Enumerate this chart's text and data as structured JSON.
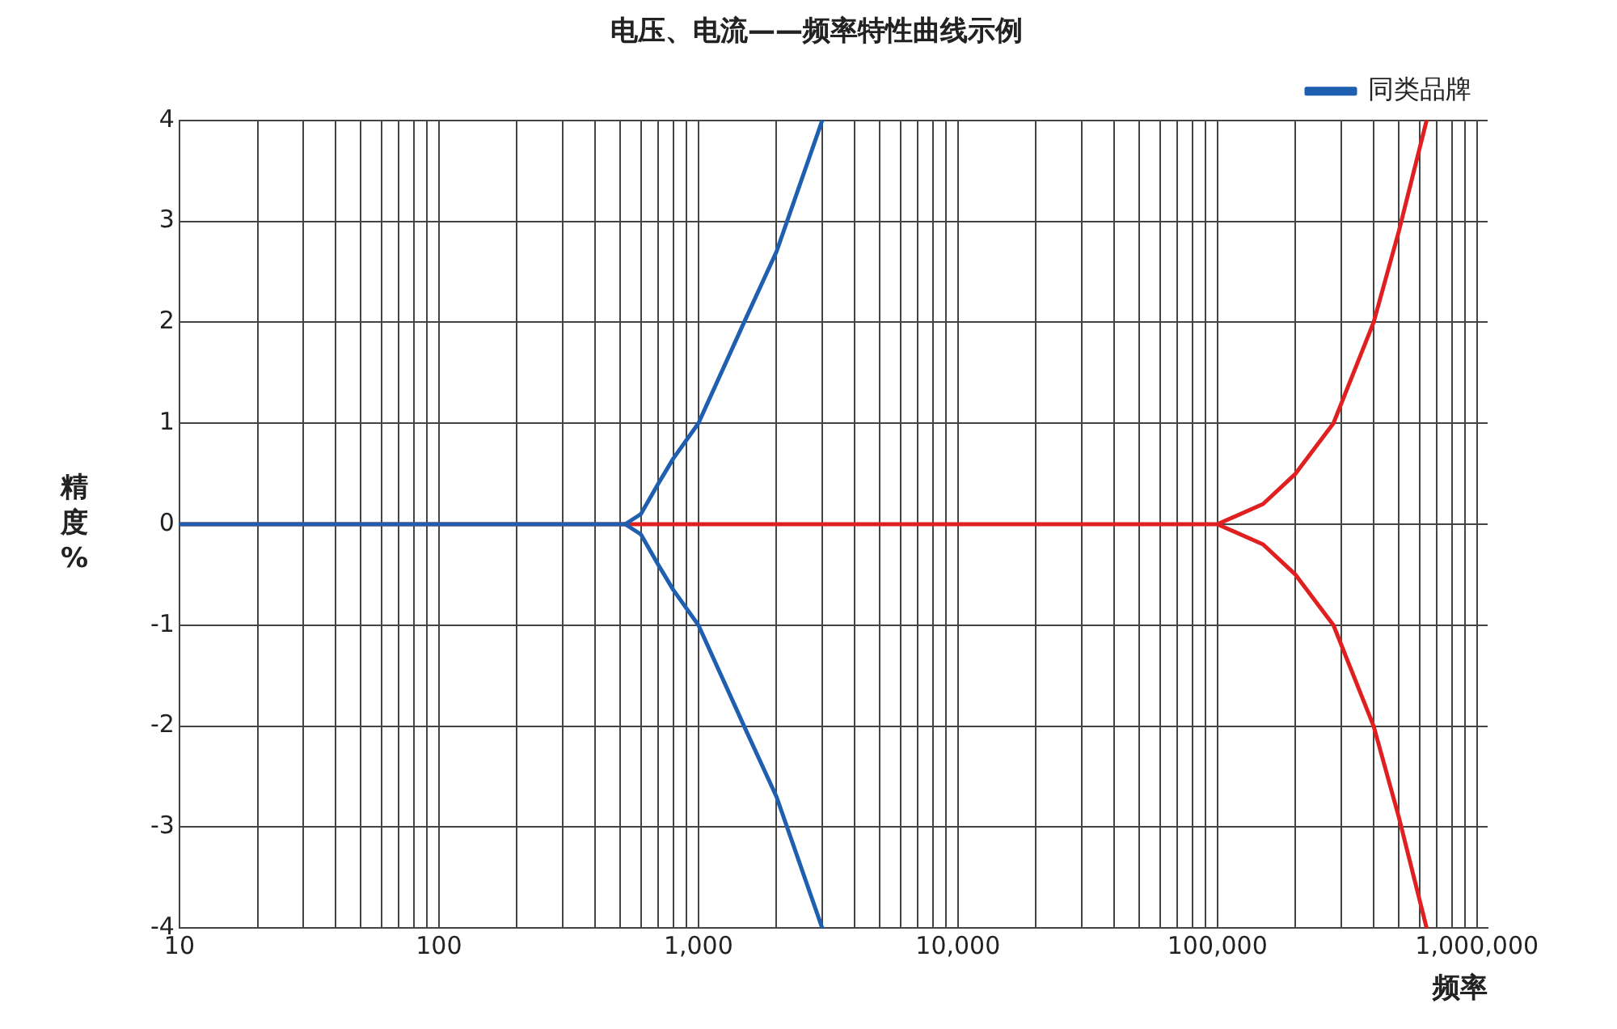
{
  "chart_data": {
    "type": "line",
    "title": "电压、电流——频率特性曲线示例",
    "xlabel": "频率",
    "ylabel": "精度%",
    "log": "x",
    "xlim": [
      10,
      1100000
    ],
    "xticks": [
      {
        "value": 10,
        "label": "10"
      },
      {
        "value": 20,
        "label": null
      },
      {
        "value": 30,
        "label": null
      },
      {
        "value": 40,
        "label": null
      },
      {
        "value": 50,
        "label": null
      },
      {
        "value": 60,
        "label": null
      },
      {
        "value": 70,
        "label": null
      },
      {
        "value": 80,
        "label": null
      },
      {
        "value": 90,
        "label": null
      },
      {
        "value": 100,
        "label": "100"
      },
      {
        "value": 200,
        "label": null
      },
      {
        "value": 300,
        "label": null
      },
      {
        "value": 400,
        "label": null
      },
      {
        "value": 500,
        "label": null
      },
      {
        "value": 600,
        "label": null
      },
      {
        "value": 700,
        "label": null
      },
      {
        "value": 800,
        "label": null
      },
      {
        "value": 900,
        "label": null
      },
      {
        "value": 1000,
        "label": "1,000"
      },
      {
        "value": 2000,
        "label": null
      },
      {
        "value": 3000,
        "label": null
      },
      {
        "value": 4000,
        "label": null
      },
      {
        "value": 5000,
        "label": null
      },
      {
        "value": 6000,
        "label": null
      },
      {
        "value": 7000,
        "label": null
      },
      {
        "value": 8000,
        "label": null
      },
      {
        "value": 9000,
        "label": null
      },
      {
        "value": 10000,
        "label": "10,000"
      },
      {
        "value": 20000,
        "label": null
      },
      {
        "value": 30000,
        "label": null
      },
      {
        "value": 40000,
        "label": null
      },
      {
        "value": 50000,
        "label": null
      },
      {
        "value": 60000,
        "label": null
      },
      {
        "value": 70000,
        "label": null
      },
      {
        "value": 80000,
        "label": null
      },
      {
        "value": 90000,
        "label": null
      },
      {
        "value": 100000,
        "label": "100,000"
      },
      {
        "value": 200000,
        "label": null
      },
      {
        "value": 300000,
        "label": null
      },
      {
        "value": 400000,
        "label": null
      },
      {
        "value": 500000,
        "label": null
      },
      {
        "value": 600000,
        "label": null
      },
      {
        "value": 700000,
        "label": null
      },
      {
        "value": 800000,
        "label": null
      },
      {
        "value": 900000,
        "label": null
      },
      {
        "value": 1000000,
        "label": "1,000,000"
      }
    ],
    "ylim": [
      -4,
      4
    ],
    "yticks": [
      -4,
      -3,
      -2,
      -1,
      0,
      1,
      2,
      3,
      4
    ],
    "grid": true,
    "legend": "top right",
    "marker": "none",
    "line_style": "solid",
    "series": [
      {
        "name": "同类品牌",
        "color": "#1f5fb0",
        "x": [
          10,
          522,
          600,
          700,
          800,
          1000,
          1500,
          2000,
          3000
        ],
        "values": [
          0,
          0,
          0.1,
          0.4,
          0.65,
          1,
          2,
          2.7,
          4
        ]
      },
      {
        "color": "#1f5fb0",
        "x": [
          522,
          600,
          700,
          800,
          1000,
          1500,
          2000,
          3000
        ],
        "values": [
          0,
          -0.1,
          -0.4,
          -0.65,
          -1,
          -2,
          -2.7,
          -4
        ]
      },
      {
        "color": "#e02020",
        "x": [
          10,
          100000,
          150000,
          200000,
          280000,
          400000,
          500000,
          640000
        ],
        "values": [
          0,
          0,
          0.2,
          0.5,
          1,
          2,
          2.9,
          4
        ]
      },
      {
        "color": "#e02020",
        "x": [
          100000,
          150000,
          200000,
          280000,
          400000,
          500000,
          640000
        ],
        "values": [
          0,
          -0.2,
          -0.5,
          -1,
          -2,
          -2.9,
          -4
        ]
      }
    ]
  }
}
